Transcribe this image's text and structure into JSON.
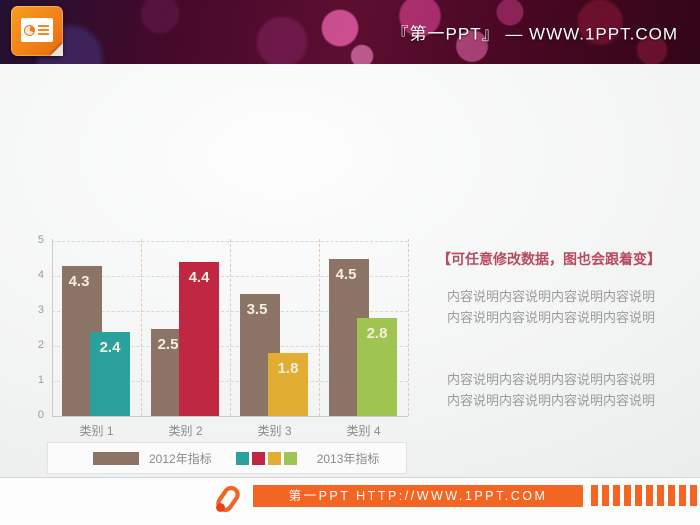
{
  "banner": {
    "brand_text": "『第一PPT』 — WWW.1PPT.COM"
  },
  "chart_data": {
    "type": "bar",
    "categories": [
      "类别 1",
      "类别 2",
      "类别 3",
      "类别 4"
    ],
    "series": [
      {
        "name": "2012年指标",
        "color": "#8b7365",
        "values": [
          4.3,
          2.5,
          3.5,
          4.5
        ]
      },
      {
        "name": "2013年指标",
        "colors": [
          "#2ba19e",
          "#c02742",
          "#e2ad33",
          "#a0c452"
        ],
        "values": [
          2.4,
          4.4,
          1.8,
          2.8
        ]
      }
    ],
    "title": "",
    "xlabel": "",
    "ylabel": "",
    "ylim": [
      0,
      5
    ],
    "yticks": [
      0,
      1,
      2,
      3,
      4,
      5
    ],
    "grid": true,
    "legend_position": "bottom",
    "bar_label_color": "#f5eedd"
  },
  "panel": {
    "title": "【可任意修改数据，图也会跟着变】",
    "title_color": "#b94a60",
    "paragraphs": [
      [
        "内容说明内容说明内容说明内容说明",
        "内容说明内容说明内容说明内容说明"
      ],
      [
        "内容说明内容说明内容说明内容说明",
        "内容说明内容说明内容说明内容说明"
      ]
    ]
  },
  "footer": {
    "site_text": "第一PPT HTTP://WWW.1PPT.COM",
    "accent_color": "#f26522",
    "barcode_bars": 10
  }
}
